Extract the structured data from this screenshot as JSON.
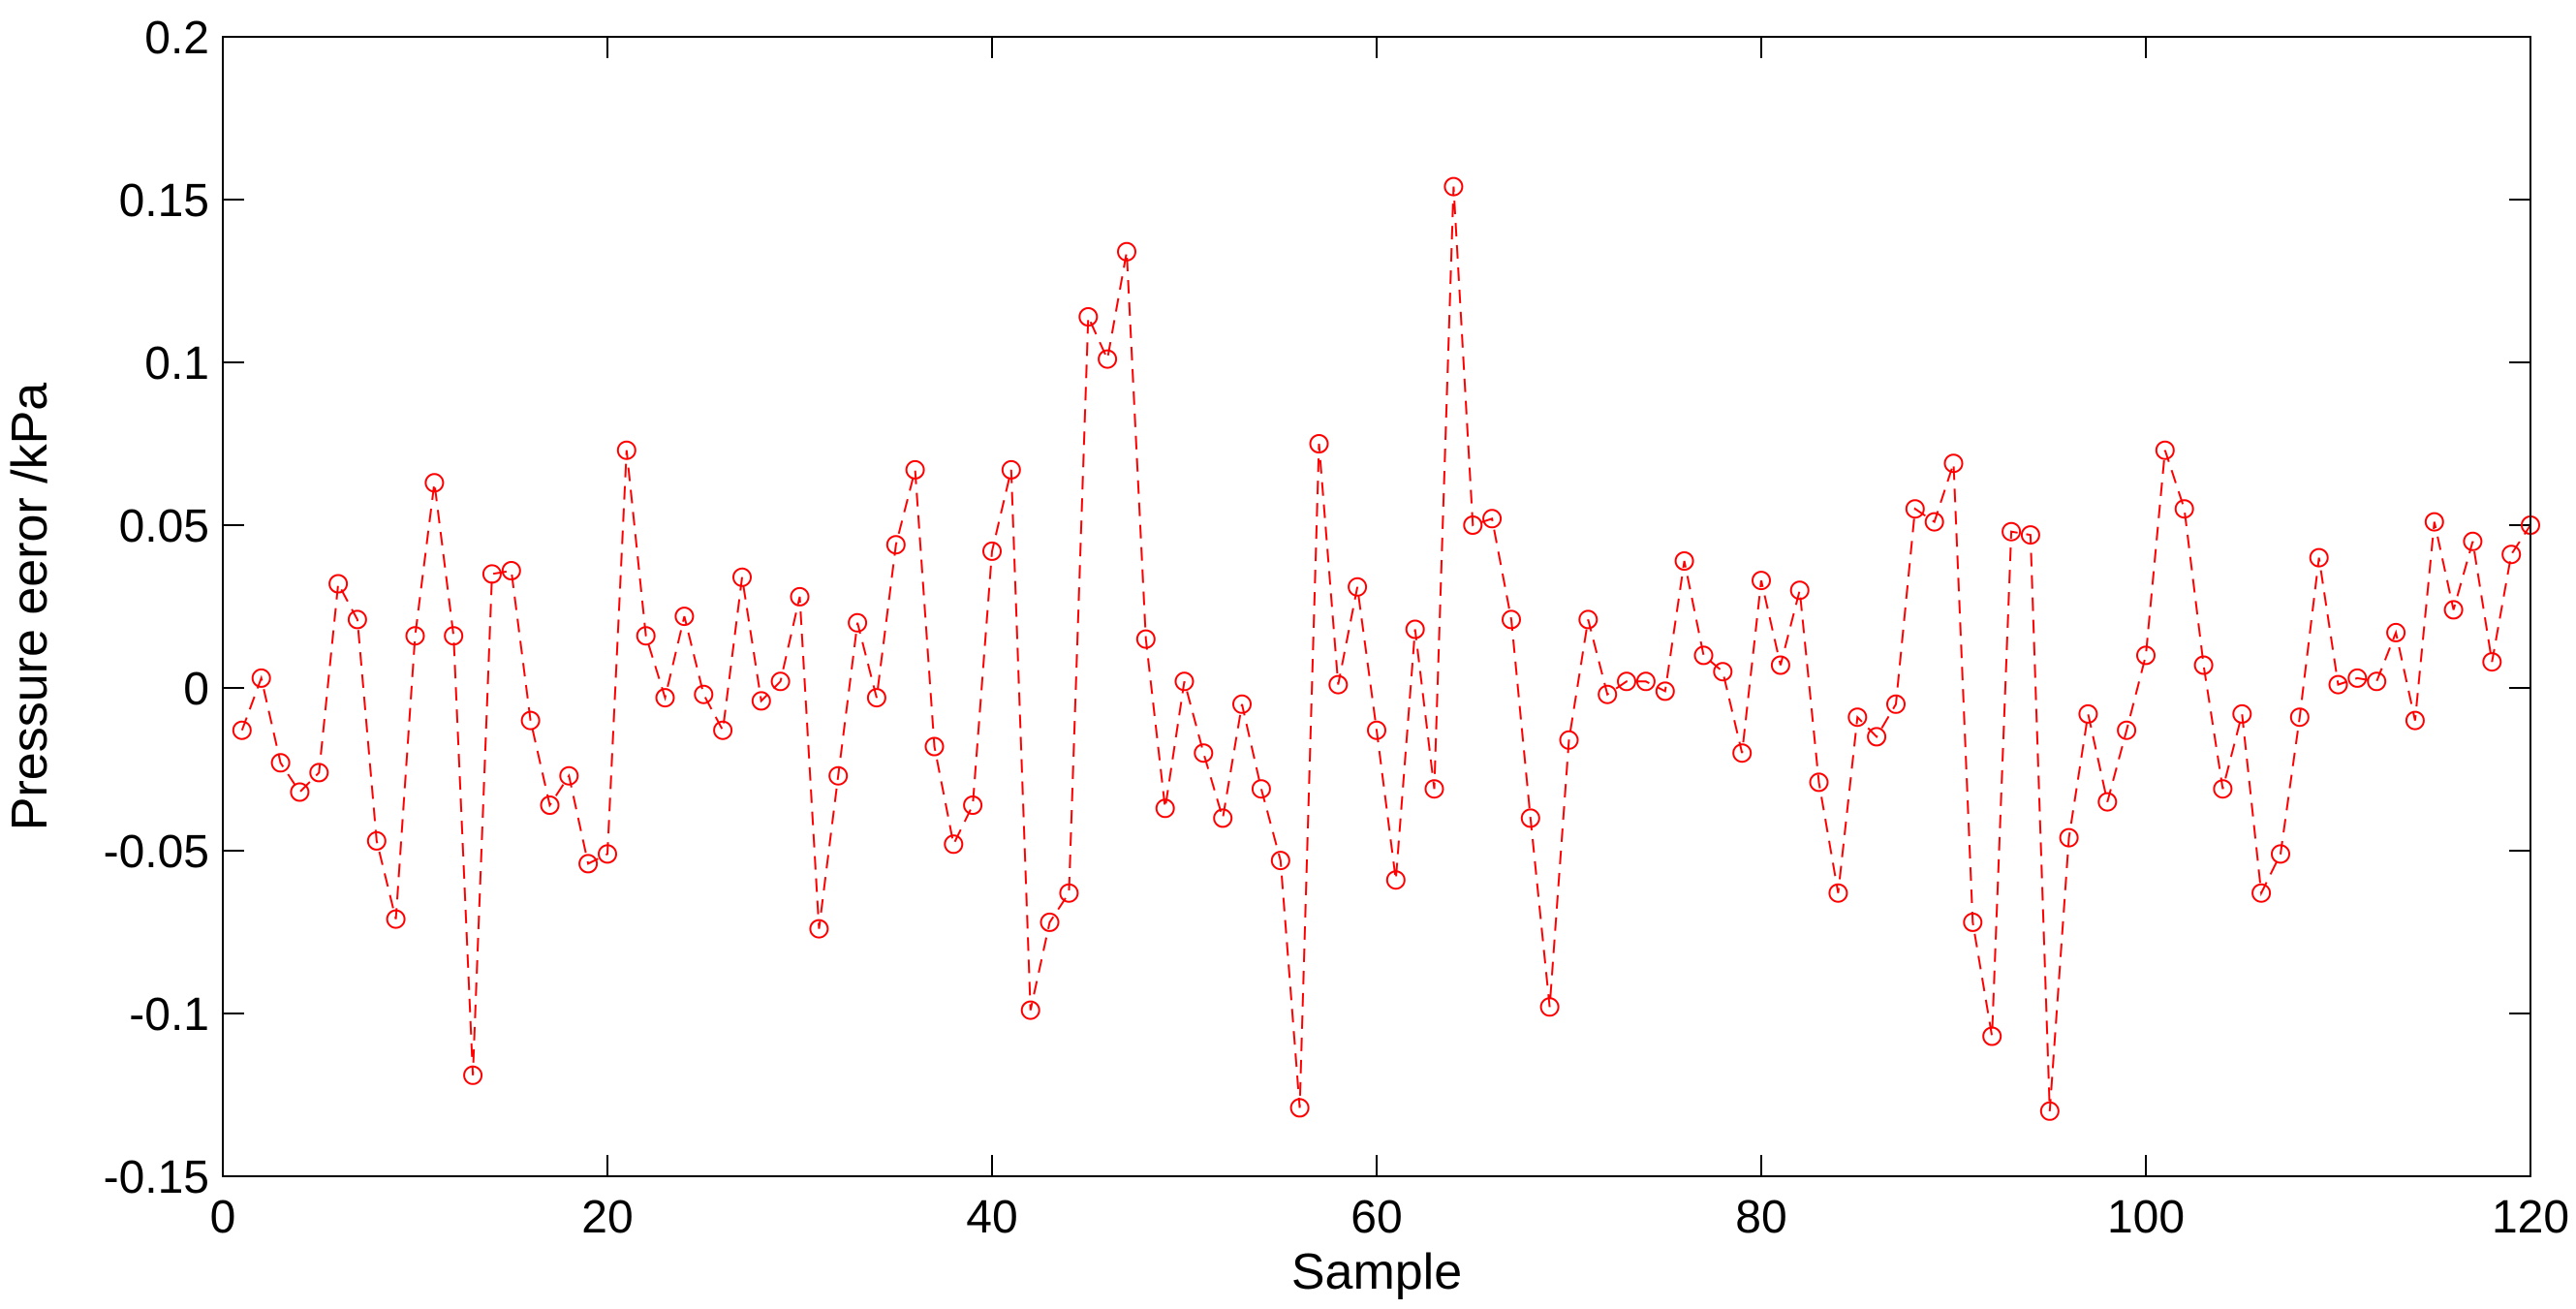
{
  "chart_data": {
    "type": "line",
    "title": "",
    "xlabel": "Sample",
    "ylabel": "Pressure eeror /kPa",
    "xlim": [
      0,
      120
    ],
    "ylim": [
      -0.15,
      0.2
    ],
    "xticks": [
      0,
      20,
      40,
      60,
      80,
      100,
      120
    ],
    "xtick_labels": [
      "0",
      "20",
      "40",
      "60",
      "80",
      "100",
      "120"
    ],
    "yticks": [
      -0.15,
      -0.1,
      -0.05,
      0,
      0.05,
      0.1,
      0.15,
      0.2
    ],
    "ytick_labels": [
      "-0.15",
      "-0.1",
      "-0.05",
      "0",
      "0.05",
      "0.1",
      "0.15",
      "0.2"
    ],
    "grid": false,
    "legend": "none",
    "series": [
      {
        "color": "#ff0000",
        "line_style": "dashed",
        "marker": "circle",
        "x": [
          1,
          2,
          3,
          4,
          5,
          6,
          7,
          8,
          9,
          10,
          11,
          12,
          13,
          14,
          15,
          16,
          17,
          18,
          19,
          20,
          21,
          22,
          23,
          24,
          25,
          26,
          27,
          28,
          29,
          30,
          31,
          32,
          33,
          34,
          35,
          36,
          37,
          38,
          39,
          40,
          41,
          42,
          43,
          44,
          45,
          46,
          47,
          48,
          49,
          50,
          51,
          52,
          53,
          54,
          55,
          56,
          57,
          58,
          59,
          60,
          61,
          62,
          63,
          64,
          65,
          66,
          67,
          68,
          69,
          70,
          71,
          72,
          73,
          74,
          75,
          76,
          77,
          78,
          79,
          80,
          81,
          82,
          83,
          84,
          85,
          86,
          87,
          88,
          89,
          90,
          91,
          92,
          93,
          94,
          95,
          96,
          97,
          98,
          99,
          100,
          101,
          102,
          103,
          104,
          105,
          106,
          107,
          108,
          109,
          110,
          111,
          112,
          113,
          114,
          115,
          116,
          117,
          118,
          119,
          120
        ],
        "y": [
          -0.013,
          0.003,
          -0.023,
          -0.032,
          -0.026,
          0.032,
          0.021,
          -0.047,
          -0.071,
          0.016,
          0.063,
          0.016,
          -0.119,
          0.035,
          0.036,
          -0.01,
          -0.036,
          -0.027,
          -0.054,
          -0.051,
          0.073,
          0.016,
          -0.003,
          0.022,
          -0.002,
          -0.013,
          0.034,
          -0.004,
          0.002,
          0.028,
          -0.074,
          -0.027,
          0.02,
          -0.003,
          0.044,
          0.067,
          -0.018,
          -0.048,
          -0.036,
          0.042,
          0.067,
          -0.099,
          -0.072,
          -0.063,
          0.114,
          0.101,
          0.134,
          0.015,
          -0.037,
          0.002,
          -0.02,
          -0.04,
          -0.005,
          -0.031,
          -0.053,
          -0.129,
          0.075,
          0.001,
          0.031,
          -0.013,
          -0.059,
          0.018,
          -0.031,
          0.154,
          0.05,
          0.052,
          0.021,
          -0.04,
          -0.098,
          -0.016,
          0.021,
          -0.002,
          0.002,
          0.002,
          -0.001,
          0.039,
          0.01,
          0.005,
          -0.02,
          0.033,
          0.007,
          0.03,
          -0.029,
          -0.063,
          -0.009,
          -0.015,
          -0.005,
          0.055,
          0.051,
          0.069,
          -0.072,
          -0.107,
          0.048,
          0.047,
          -0.13,
          -0.046,
          -0.008,
          -0.035,
          -0.013,
          0.01,
          0.073,
          0.055,
          0.007,
          -0.031,
          -0.008,
          -0.063,
          -0.051,
          -0.009,
          0.04,
          0.001,
          0.003,
          0.002,
          0.017,
          -0.01,
          0.051,
          0.024,
          0.045,
          0.008,
          0.041,
          0.05
        ]
      }
    ]
  }
}
